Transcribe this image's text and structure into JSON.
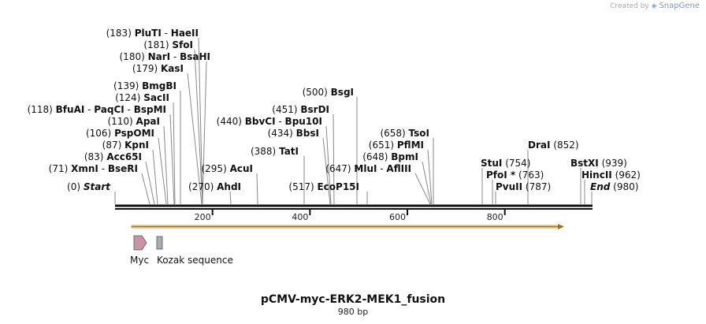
{
  "brand": {
    "prefix": "Created by",
    "name": "SnapGene"
  },
  "title": "pCMV-myc-ERK2-MEK1_fusion",
  "length_label": "980 bp",
  "length": 980,
  "start_label": "Start",
  "end_label": "End",
  "start_pos": "(0)",
  "end_pos": "(980)",
  "ticks": [
    "200",
    "400",
    "600",
    "800"
  ],
  "sites": [
    {
      "pos": "(183)",
      "names": [
        "PluTI",
        "HaeII"
      ]
    },
    {
      "pos": "(181)",
      "names": [
        "SfoI"
      ]
    },
    {
      "pos": "(180)",
      "names": [
        "NarI",
        "BsaHI"
      ]
    },
    {
      "pos": "(179)",
      "names": [
        "KasI"
      ]
    },
    {
      "pos": "(139)",
      "names": [
        "BmgBI"
      ]
    },
    {
      "pos": "(124)",
      "names": [
        "SacII"
      ]
    },
    {
      "pos": "(118)",
      "names": [
        "BfuAI",
        "PaqCI",
        "BspMI"
      ]
    },
    {
      "pos": "(110)",
      "names": [
        "ApaI"
      ]
    },
    {
      "pos": "(106)",
      "names": [
        "PspOMI"
      ]
    },
    {
      "pos": "(87)",
      "names": [
        "KpnI"
      ]
    },
    {
      "pos": "(83)",
      "names": [
        "Acc65I"
      ]
    },
    {
      "pos": "(71)",
      "names": [
        "XmnI",
        "BseRI"
      ]
    },
    {
      "pos": "(295)",
      "names": [
        "AcuI"
      ]
    },
    {
      "pos": "(270)",
      "names": [
        "AhdI"
      ]
    },
    {
      "pos": "(500)",
      "names": [
        "BsgI"
      ]
    },
    {
      "pos": "(451)",
      "names": [
        "BsrDI"
      ]
    },
    {
      "pos": "(440)",
      "names": [
        "BbvCI",
        "Bpu10I"
      ]
    },
    {
      "pos": "(434)",
      "names": [
        "BbsI"
      ]
    },
    {
      "pos": "(388)",
      "names": [
        "TatI"
      ]
    },
    {
      "pos": "(517)",
      "names": [
        "EcoP15I"
      ]
    },
    {
      "pos": "(658)",
      "names": [
        "TsoI"
      ]
    },
    {
      "pos": "(651)",
      "names": [
        "PflMI"
      ]
    },
    {
      "pos": "(648)",
      "names": [
        "BpmI"
      ]
    },
    {
      "pos": "(647)",
      "names": [
        "MluI",
        "AflIII"
      ]
    },
    {
      "pos": "(852)",
      "names": [
        "DraI"
      ]
    },
    {
      "pos": "(754)",
      "names": [
        "StuI"
      ]
    },
    {
      "pos": "(763)",
      "names": [
        "PfoI *"
      ]
    },
    {
      "pos": "(787)",
      "names": [
        "PvuII"
      ]
    },
    {
      "pos": "(939)",
      "names": [
        "BstXI"
      ]
    },
    {
      "pos": "(962)",
      "names": [
        "HincII"
      ]
    }
  ],
  "features": [
    {
      "name": "Myc",
      "color": "#c994a8"
    },
    {
      "name": "Kozak sequence",
      "color": "#a8aeb6"
    }
  ],
  "orf_color": "#f2c987",
  "orf_edge": "#9a7020"
}
